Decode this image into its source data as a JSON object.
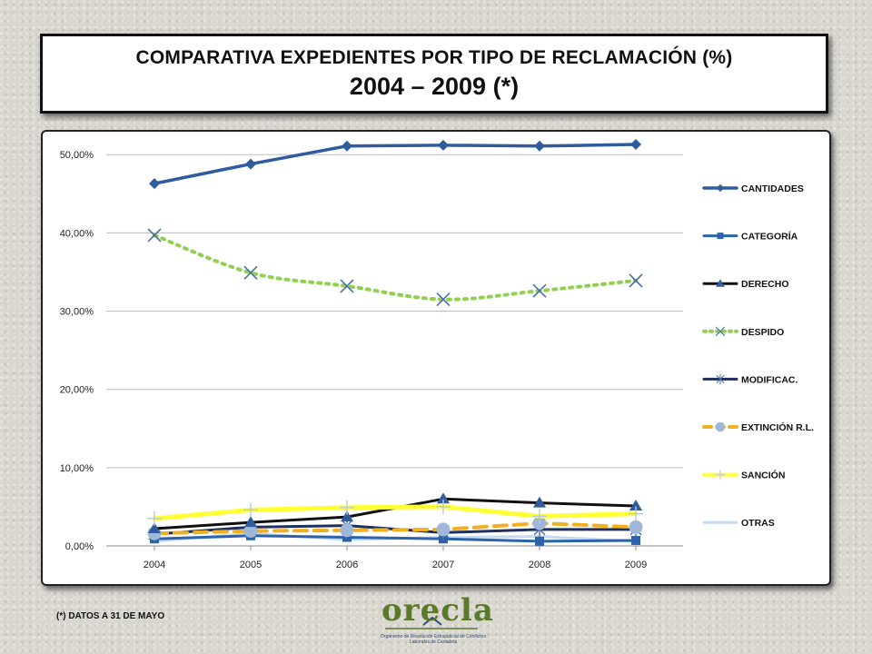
{
  "title": {
    "line1": "COMPARATIVA EXPEDIENTES POR TIPO DE RECLAMACIÓN (%)",
    "line2": "2004 – 2009 (*)"
  },
  "footnote": "(*) DATOS A  31 DE MAYO",
  "logo": {
    "text": "orecla",
    "subtitle": "Organismo de Resolución Extrajudicial de Conflictos Laborales de Cantabria"
  },
  "chart_data": {
    "type": "line",
    "x": [
      "2004",
      "2005",
      "2006",
      "2007",
      "2008",
      "2009"
    ],
    "ylim": [
      0,
      52
    ],
    "yticks": [
      "0,00%",
      "10,00%",
      "20,00%",
      "30,00%",
      "40,00%",
      "50,00%"
    ],
    "ytick_values": [
      0,
      10,
      20,
      30,
      40,
      50
    ],
    "grid": true,
    "legend_position": "right",
    "series": [
      {
        "name": "CANTIDADES",
        "color": "#2f5c9e",
        "dash": "",
        "width": 3.5,
        "marker": "diamond",
        "values": [
          46.3,
          48.8,
          51.1,
          51.2,
          51.1,
          51.3
        ]
      },
      {
        "name": "CATEGORÍA",
        "color": "#2d63aa",
        "dash": "",
        "width": 3,
        "marker": "square",
        "values": [
          0.9,
          1.3,
          1.1,
          0.9,
          0.6,
          0.7
        ]
      },
      {
        "name": "DERECHO",
        "color": "#111111",
        "dash": "",
        "width": 3,
        "marker": "triangle",
        "values": [
          2.2,
          3.0,
          3.7,
          6.0,
          5.5,
          5.1
        ]
      },
      {
        "name": "DESPIDO",
        "color": "#92d050",
        "dash": "3,6",
        "width": 4,
        "marker": "x",
        "values": [
          39.7,
          34.9,
          33.2,
          31.5,
          32.6,
          33.9
        ]
      },
      {
        "name": "MODIFICAC.",
        "color": "#1f2f5e",
        "dash": "",
        "width": 3,
        "marker": "star",
        "values": [
          1.5,
          2.4,
          2.6,
          1.7,
          2.1,
          2.1
        ]
      },
      {
        "name": "EXTINCIÓN R.L.",
        "color": "#f0b020",
        "dash": "14,8",
        "width": 4,
        "marker": "circle",
        "values": [
          1.6,
          1.9,
          2.0,
          2.1,
          2.9,
          2.4
        ]
      },
      {
        "name": "SANCIÓN",
        "color": "#ffff33",
        "dash": "",
        "width": 5,
        "marker": "plus",
        "values": [
          3.5,
          4.6,
          4.9,
          5.0,
          3.8,
          4.1
        ]
      },
      {
        "name": "OTRAS",
        "color": "#c5d9f1",
        "dash": "",
        "width": 3,
        "marker": "none",
        "values": [
          0.6,
          1.6,
          0.8,
          1.1,
          1.2,
          0.6
        ]
      }
    ]
  }
}
